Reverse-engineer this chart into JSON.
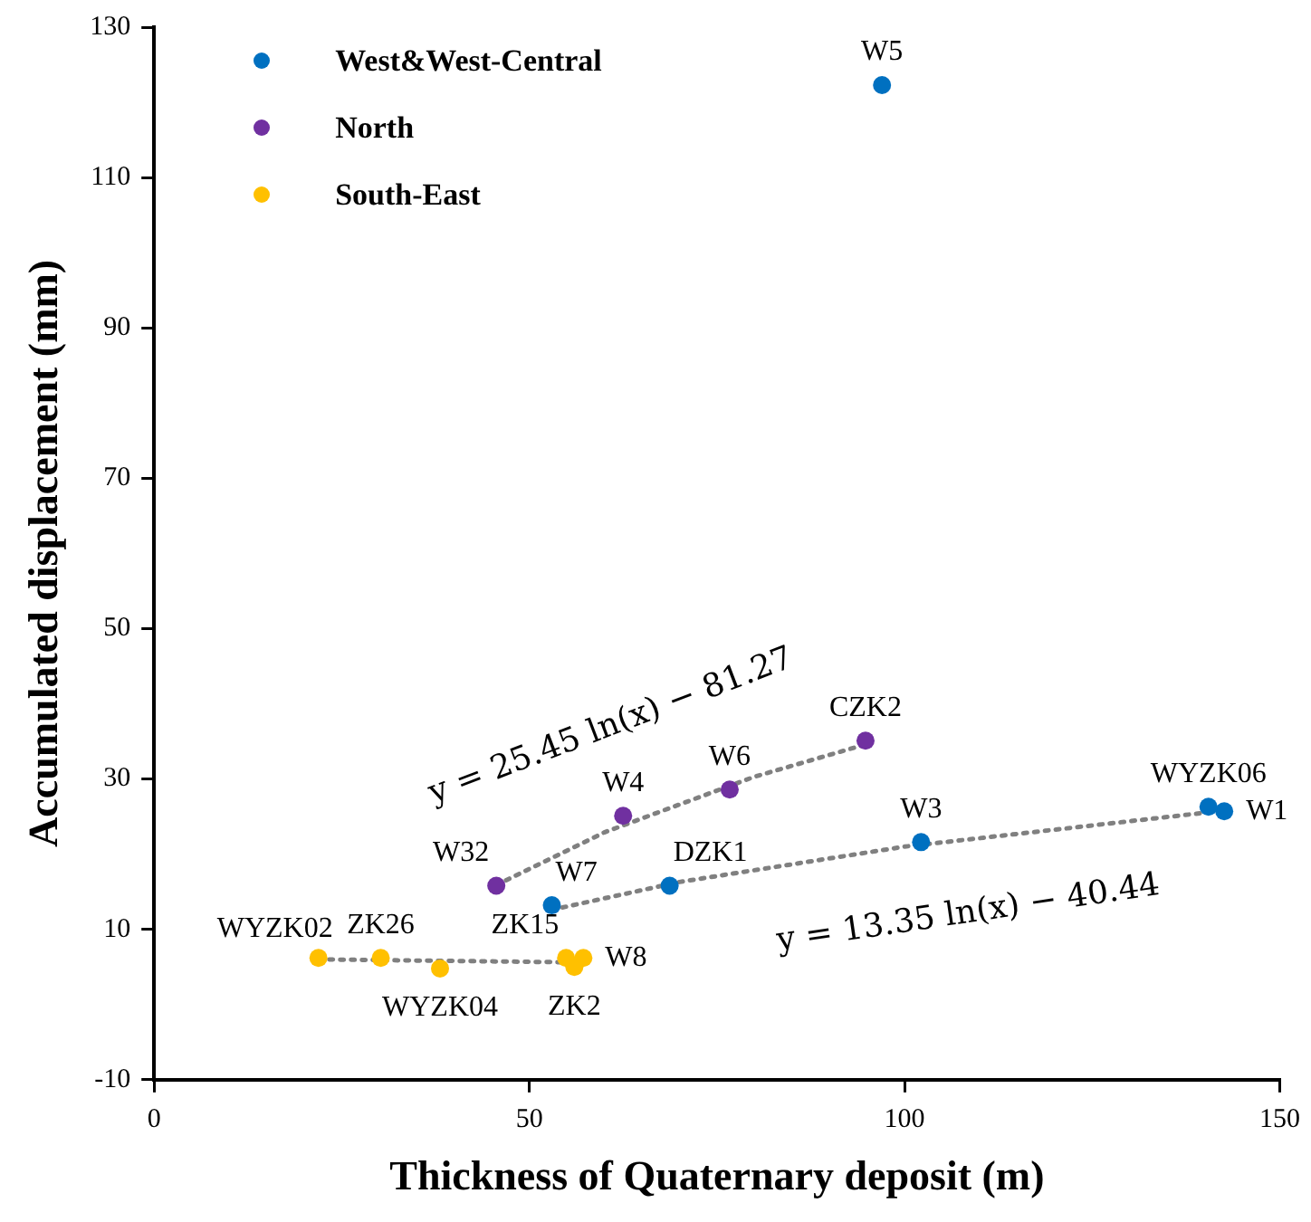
{
  "chart_data": {
    "type": "scatter",
    "xlabel": "Thickness of Quaternary deposit (m)",
    "ylabel": "Accumulated displacement (mm)",
    "xlim": [
      0,
      150
    ],
    "xticks": [
      0,
      50,
      100,
      150
    ],
    "ylim": [
      -10,
      130
    ],
    "yticks": [
      -10,
      10,
      30,
      50,
      70,
      90,
      110,
      130
    ],
    "grid": false,
    "legend": "top left",
    "marker": "circle",
    "series": [
      {
        "name": "West&West-Central",
        "color": "#0070c0",
        "x": [
          97.0,
          142.6,
          140.5,
          102.2,
          68.7,
          53.0
        ],
        "values": [
          122.3,
          25.7,
          26.3,
          21.6,
          15.8,
          13.2
        ],
        "value_labels": [
          "W5",
          "W1",
          "WYZK06",
          "W3",
          "DZK1",
          "W7"
        ]
      },
      {
        "name": "North",
        "color": "#7030a0",
        "x": [
          45.6,
          62.5,
          76.7,
          94.8
        ],
        "values": [
          15.8,
          25.1,
          28.6,
          35.1
        ],
        "value_labels": [
          "W32",
          "W4",
          "W6",
          "CZK2"
        ]
      },
      {
        "name": "South-East",
        "color": "#ffc000",
        "x": [
          21.9,
          30.2,
          38.1,
          54.9,
          56.0,
          57.2
        ],
        "values": [
          6.2,
          6.2,
          4.8,
          6.2,
          5.0,
          6.2
        ],
        "value_labels": [
          "WYZK02",
          "ZK26",
          "WYZK04",
          "ZK15",
          "ZK2",
          "W8"
        ]
      },
      {
        "type": "line",
        "color": "#808080",
        "line_style": "dotted",
        "marker": "none",
        "x": [
          45.6,
          60,
          80,
          94.8
        ],
        "values": [
          15.9,
          22.9,
          30.3,
          34.6
        ]
      },
      {
        "type": "line",
        "color": "#808080",
        "line_style": "dotted",
        "marker": "none",
        "x": [
          53.0,
          70,
          100,
          142.6
        ],
        "values": [
          12.6,
          16.3,
          21.0,
          25.8
        ]
      },
      {
        "type": "line",
        "color": "#808080",
        "line_style": "dotted",
        "marker": "none",
        "x": [
          21.9,
          57.2
        ],
        "values": [
          6.0,
          5.6
        ]
      }
    ],
    "annotations": [
      "y = 25.45 ln(x) − 81.27",
      "y = 13.35 ln(x) − 40.44"
    ]
  }
}
